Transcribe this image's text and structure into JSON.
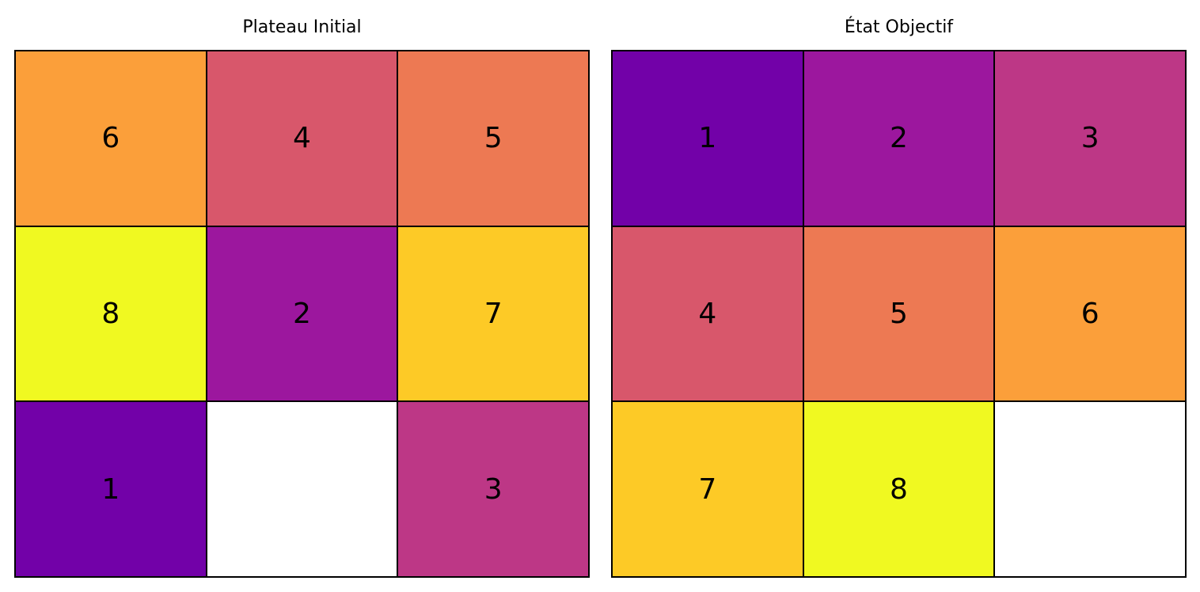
{
  "colors": {
    "1": "#7201a8",
    "2": "#9c179e",
    "3": "#bd3786",
    "4": "#d8576b",
    "5": "#ed7953",
    "6": "#fb9f3a",
    "7": "#fdca26",
    "8": "#f0f921",
    "empty": "#ffffff"
  },
  "boards": {
    "initial": {
      "title": "Plateau Initial",
      "tiles": [
        "6",
        "4",
        "5",
        "8",
        "2",
        "7",
        "1",
        "",
        "3"
      ]
    },
    "goal": {
      "title": "État Objectif",
      "tiles": [
        "1",
        "2",
        "3",
        "4",
        "5",
        "6",
        "7",
        "8",
        ""
      ]
    }
  }
}
